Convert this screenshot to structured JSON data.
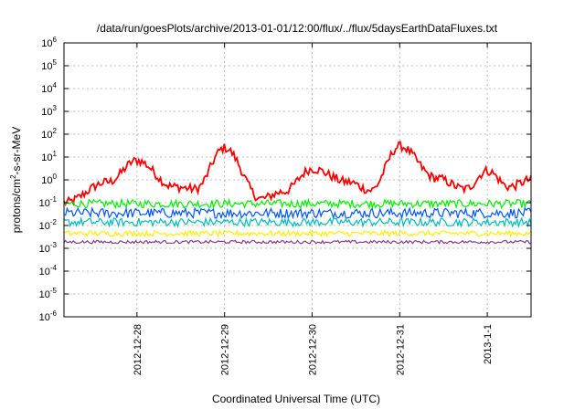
{
  "chart_data": {
    "type": "line",
    "title": "/data/run/goesPlots/archive/2013-01-01/12:00/flux/../flux/5daysEarthDataFluxes.txt",
    "xlabel": "Coordinated Universal Time (UTC)",
    "ylabel": {
      "base": "protons/cm",
      "exp": "2",
      "rest": "-s-sr-MeV"
    },
    "yscale": "log",
    "ylim": [
      1e-06,
      1000000.0
    ],
    "y_ticks": [
      {
        "base": "10",
        "exp": "6"
      },
      {
        "base": "10",
        "exp": "5"
      },
      {
        "base": "10",
        "exp": "4"
      },
      {
        "base": "10",
        "exp": "3"
      },
      {
        "base": "10",
        "exp": "2"
      },
      {
        "base": "10",
        "exp": "1"
      },
      {
        "base": "10",
        "exp": "0"
      },
      {
        "base": "10",
        "exp": "-1"
      },
      {
        "base": "10",
        "exp": "-2"
      },
      {
        "base": "10",
        "exp": "-3"
      },
      {
        "base": "10",
        "exp": "-4"
      },
      {
        "base": "10",
        "exp": "-5"
      },
      {
        "base": "10",
        "exp": "-6"
      }
    ],
    "xlim": [
      "2012-12-27 04:00",
      "2013-01-01 12:00"
    ],
    "x_ticks": [
      "2012-12-28",
      "2012-12-29",
      "2012-12-30",
      "2012-12-31",
      "2013-1-1"
    ],
    "grid": true,
    "series": [
      {
        "color": "#ff0000",
        "x": [
          "2012-12-27 04:00",
          "2012-12-27 16:00",
          "2012-12-28 00:00",
          "2012-12-28 10:00",
          "2012-12-28 16:00",
          "2012-12-29 00:00",
          "2012-12-29 10:00",
          "2012-12-29 16:00",
          "2012-12-30 00:00",
          "2012-12-30 10:00",
          "2012-12-30 16:00",
          "2012-12-31 00:00",
          "2012-12-31 10:00",
          "2012-12-31 18:00",
          "2013-01-01 00:00",
          "2013-01-01 06:00",
          "2013-01-01 12:00"
        ],
        "values": [
          0.1,
          0.8,
          7,
          0.5,
          0.4,
          25,
          0.15,
          0.3,
          3,
          0.8,
          0.35,
          30,
          1.2,
          0.4,
          2.5,
          0.5,
          1.0
        ]
      },
      {
        "color": "#00ee00",
        "x": [
          "2012-12-27 04:00",
          "2013-01-01 12:00"
        ],
        "values": [
          0.09,
          0.09
        ]
      },
      {
        "color": "#0055ff",
        "x": [
          "2012-12-27 04:00",
          "2013-01-01 12:00"
        ],
        "values": [
          0.035,
          0.035
        ]
      },
      {
        "color": "#00bbbb",
        "x": [
          "2012-12-27 04:00",
          "2013-01-01 12:00"
        ],
        "values": [
          0.014,
          0.014
        ]
      },
      {
        "color": "#ffee00",
        "x": [
          "2012-12-27 04:00",
          "2013-01-01 12:00"
        ],
        "values": [
          0.0045,
          0.0045
        ]
      },
      {
        "color": "#8b3a8b",
        "x": [
          "2012-12-27 04:00",
          "2013-01-01 12:00"
        ],
        "values": [
          0.0019,
          0.0019
        ]
      }
    ]
  }
}
